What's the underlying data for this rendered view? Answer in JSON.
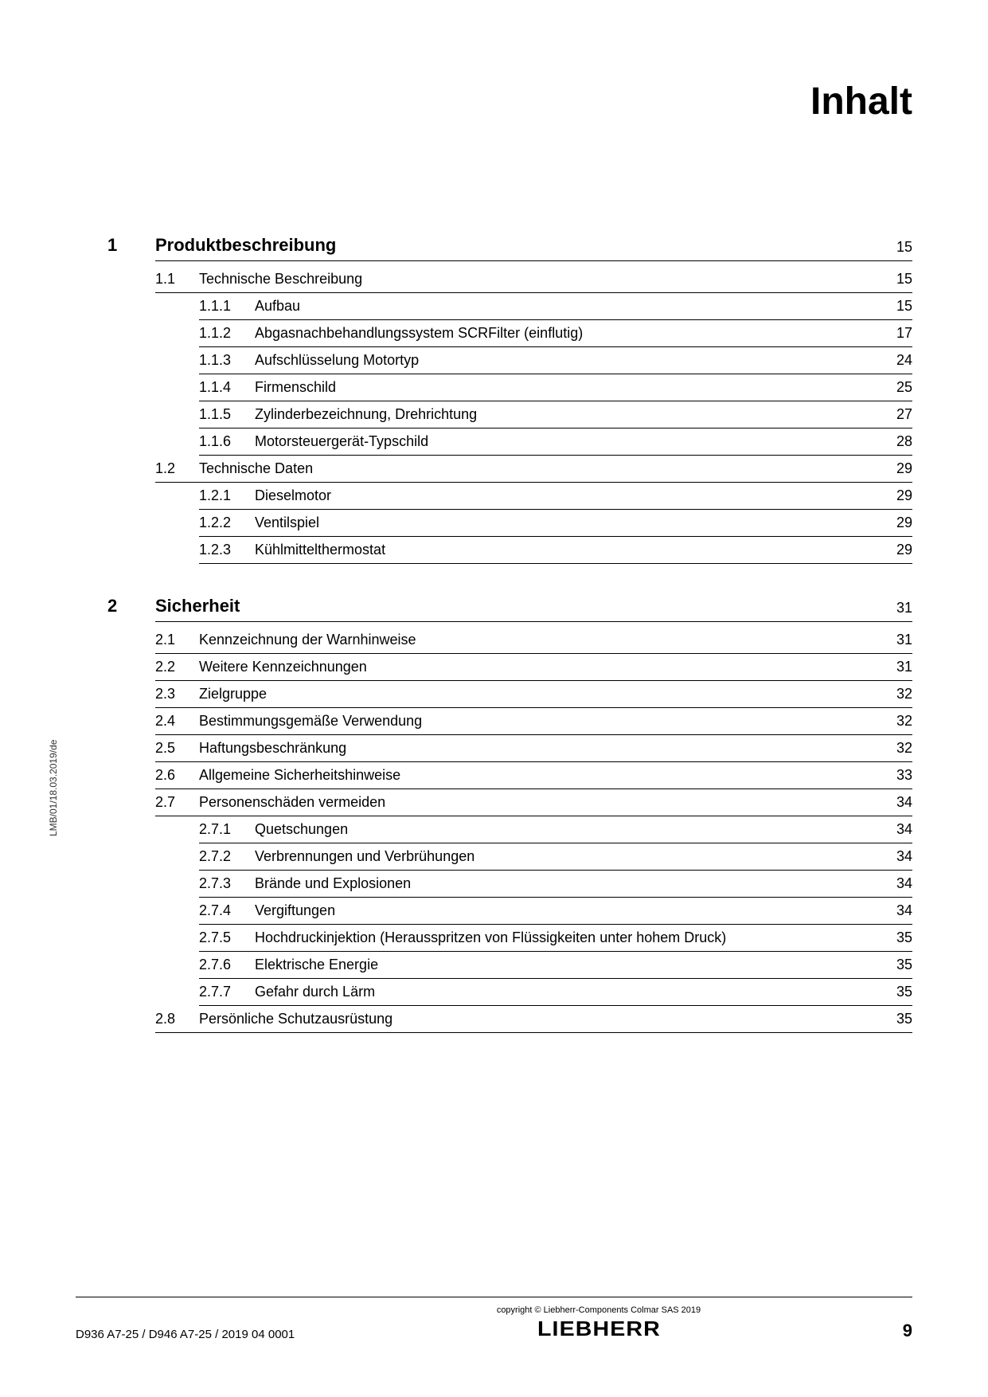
{
  "page_title": "Inhalt",
  "side_text": "LMB/01/18.03.2019/de",
  "footer": {
    "left": "D936 A7-25 / D946 A7-25 / 2019 04 0001",
    "copyright": "copyright © Liebherr-Components Colmar SAS 2019",
    "logo": "LIEBHERR",
    "page_number": "9"
  },
  "sections": [
    {
      "num": "1",
      "title": "Produktbeschreibung",
      "page": "15",
      "children": [
        {
          "num": "1.1",
          "title": "Technische Beschreibung",
          "page": "15",
          "children": [
            {
              "num": "1.1.1",
              "title": "Aufbau",
              "page": "15"
            },
            {
              "num": "1.1.2",
              "title": "Abgasnachbehandlungssystem SCRFilter (einflutig)",
              "page": "17"
            },
            {
              "num": "1.1.3",
              "title": "Aufschlüsselung Motortyp",
              "page": "24"
            },
            {
              "num": "1.1.4",
              "title": "Firmenschild",
              "page": "25"
            },
            {
              "num": "1.1.5",
              "title": "Zylinderbezeichnung, Drehrichtung",
              "page": "27"
            },
            {
              "num": "1.1.6",
              "title": "Motorsteuergerät-Typschild",
              "page": "28"
            }
          ]
        },
        {
          "num": "1.2",
          "title": "Technische Daten",
          "page": "29",
          "children": [
            {
              "num": "1.2.1",
              "title": "Dieselmotor",
              "page": "29"
            },
            {
              "num": "1.2.2",
              "title": "Ventilspiel",
              "page": "29"
            },
            {
              "num": "1.2.3",
              "title": "Kühlmittelthermostat",
              "page": "29"
            }
          ]
        }
      ]
    },
    {
      "num": "2",
      "title": "Sicherheit",
      "page": "31",
      "children": [
        {
          "num": "2.1",
          "title": "Kennzeichnung der Warnhinweise",
          "page": "31",
          "children": []
        },
        {
          "num": "2.2",
          "title": "Weitere Kennzeichnungen",
          "page": "31",
          "children": []
        },
        {
          "num": "2.3",
          "title": "Zielgruppe",
          "page": "32",
          "children": []
        },
        {
          "num": "2.4",
          "title": "Bestimmungsgemäße Verwendung",
          "page": "32",
          "children": []
        },
        {
          "num": "2.5",
          "title": "Haftungsbeschränkung",
          "page": "32",
          "children": []
        },
        {
          "num": "2.6",
          "title": "Allgemeine Sicherheitshinweise",
          "page": "33",
          "children": []
        },
        {
          "num": "2.7",
          "title": "Personenschäden vermeiden",
          "page": "34",
          "children": [
            {
              "num": "2.7.1",
              "title": "Quetschungen",
              "page": "34"
            },
            {
              "num": "2.7.2",
              "title": "Verbrennungen und Verbrühungen",
              "page": "34"
            },
            {
              "num": "2.7.3",
              "title": "Brände und Explosionen",
              "page": "34"
            },
            {
              "num": "2.7.4",
              "title": "Vergiftungen",
              "page": "34"
            },
            {
              "num": "2.7.5",
              "title": "Hochdruckinjektion (Herausspritzen von Flüssigkeiten unter hohem Druck)",
              "page": "35"
            },
            {
              "num": "2.7.6",
              "title": "Elektrische Energie",
              "page": "35"
            },
            {
              "num": "2.7.7",
              "title": "Gefahr durch Lärm",
              "page": "35"
            }
          ]
        },
        {
          "num": "2.8",
          "title": "Persönliche Schutzausrüstung",
          "page": "35",
          "children": []
        }
      ]
    }
  ]
}
